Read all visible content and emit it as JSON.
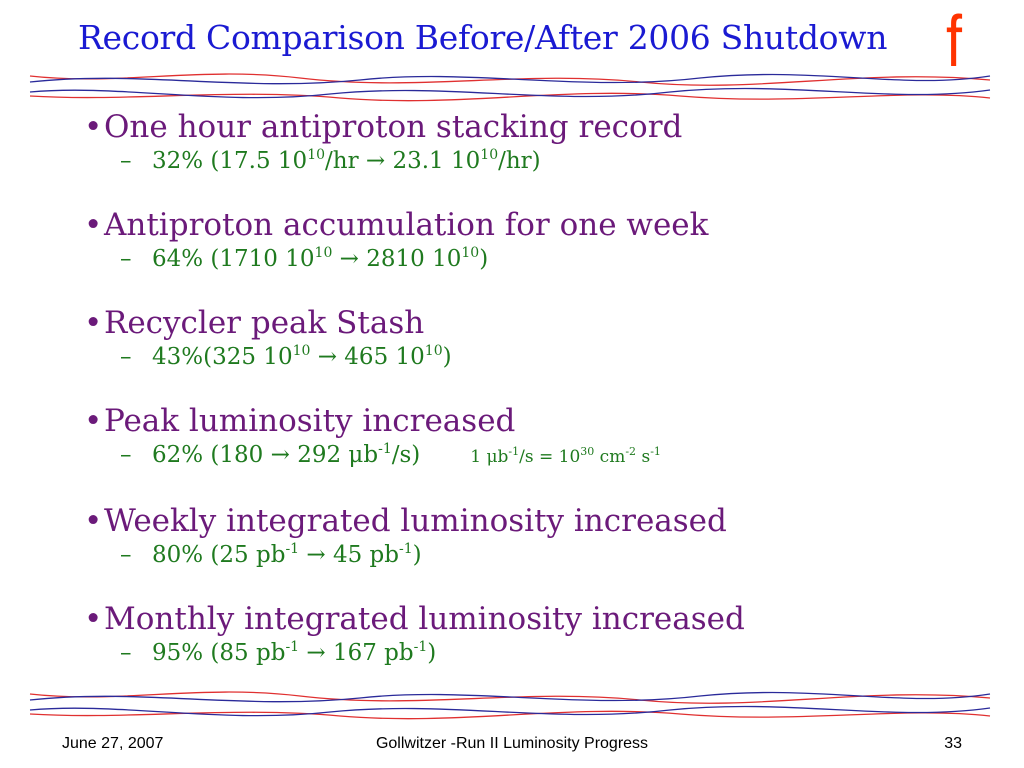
{
  "slide": {
    "title": "Record Comparison Before/After 2006 Shutdown",
    "logo_letter": "f",
    "accent_color": "#1a1ad2",
    "logo_color": "#ff3300",
    "bullet_color": "#6b1a7a",
    "sub_color": "#1f7a1f"
  },
  "items": [
    {
      "bullet": "One hour antiproton stacking record",
      "sub": {
        "pre": "32% (17.5 10",
        "sup1": "10",
        "mid": "/hr  →  23.1 10",
        "sup2": "10",
        "post": "/hr)"
      }
    },
    {
      "bullet": "Antiproton accumulation for one week",
      "sub": {
        "pre": "64% (1710 10",
        "sup1": "10",
        "mid": " → 2810 10",
        "sup2": "10",
        "post": ")"
      }
    },
    {
      "bullet": "Recycler peak Stash",
      "sub": {
        "pre": "43%(325 10",
        "sup1": "10",
        "mid": " → 465 10",
        "sup2": "10",
        "post": ")"
      }
    },
    {
      "bullet": "Peak luminosity increased",
      "sub": {
        "pre": "62% (180 → 292 μb",
        "sup1": "-1",
        "mid": "/s)",
        "sup2": "",
        "post": ""
      },
      "note": {
        "a": "1 μb",
        "s1": "-1",
        "b": "/s = 10",
        "s2": "30",
        "c": " cm",
        "s3": "-2",
        "d": " s",
        "s4": "-1"
      }
    },
    {
      "bullet": "Weekly integrated luminosity increased",
      "sub": {
        "pre": "80% (25 pb",
        "sup1": "-1",
        "mid": " → 45 pb",
        "sup2": "-1",
        "post": ")"
      }
    },
    {
      "bullet": "Monthly integrated luminosity increased",
      "sub": {
        "pre": "95% (85 pb",
        "sup1": "-1",
        "mid": " → 167 pb",
        "sup2": "-1",
        "post": ")"
      }
    }
  ],
  "footer": {
    "date": "June 27, 2007",
    "center": "Gollwitzer -Run II Luminosity Progress",
    "page": "33"
  }
}
